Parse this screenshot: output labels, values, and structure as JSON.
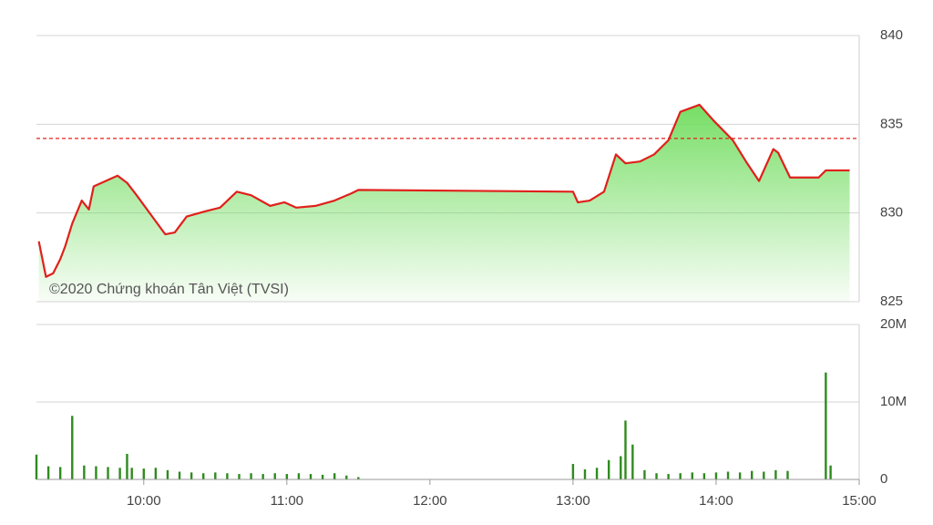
{
  "chart_data": [
    {
      "type": "line",
      "watermark": "©2020 Chứng khoán Tân Việt (TVSI)",
      "x": [
        "09:16",
        "09:19",
        "09:22",
        "09:25",
        "09:27",
        "09:30",
        "09:34",
        "09:37",
        "09:39",
        "09:44",
        "09:49",
        "09:53",
        "09:57",
        "10:03",
        "10:09",
        "10:13",
        "10:18",
        "10:26",
        "10:32",
        "10:39",
        "10:45",
        "10:53",
        "10:59",
        "11:04",
        "11:12",
        "11:20",
        "11:27",
        "11:30",
        "13:00",
        "13:02",
        "13:07",
        "13:13",
        "13:18",
        "13:22",
        "13:28",
        "13:34",
        "13:40",
        "13:45",
        "13:53",
        "13:59",
        "14:07",
        "14:13",
        "14:18",
        "14:24",
        "14:26",
        "14:31",
        "14:43",
        "14:46",
        "14:56"
      ],
      "values": [
        828.4,
        826.4,
        826.6,
        827.4,
        828.1,
        829.4,
        830.7,
        830.2,
        831.5,
        831.8,
        832.1,
        831.7,
        831.0,
        829.9,
        828.8,
        828.9,
        829.8,
        830.1,
        830.3,
        831.2,
        831.0,
        830.4,
        830.6,
        830.3,
        830.4,
        830.7,
        831.1,
        831.3,
        831.2,
        830.6,
        830.7,
        831.2,
        833.3,
        832.8,
        832.9,
        833.3,
        834.1,
        835.7,
        836.1,
        835.2,
        834.1,
        832.8,
        831.8,
        833.6,
        833.4,
        832.0,
        832.0,
        832.4,
        832.4
      ],
      "color": "#e0201b",
      "reference": 834.2,
      "reference_color": "#e0201b",
      "xlim": [
        "09:15",
        "15:00"
      ],
      "ylim": [
        825,
        840
      ],
      "yticks": [
        825,
        830,
        835,
        840
      ],
      "grid": true
    },
    {
      "type": "bar",
      "x": [
        "09:15",
        "09:20",
        "09:25",
        "09:30",
        "09:35",
        "09:40",
        "09:45",
        "09:50",
        "09:53",
        "09:55",
        "10:00",
        "10:05",
        "10:10",
        "10:15",
        "10:20",
        "10:25",
        "10:30",
        "10:35",
        "10:40",
        "10:45",
        "10:50",
        "10:55",
        "11:00",
        "11:05",
        "11:10",
        "11:15",
        "11:20",
        "11:25",
        "11:30",
        "13:00",
        "13:05",
        "13:10",
        "13:15",
        "13:20",
        "13:22",
        "13:25",
        "13:30",
        "13:35",
        "13:40",
        "13:45",
        "13:50",
        "13:55",
        "14:00",
        "14:05",
        "14:10",
        "14:15",
        "14:20",
        "14:25",
        "14:30",
        "14:46",
        "14:48"
      ],
      "values": [
        3200000,
        1700000,
        1600000,
        8200000,
        1800000,
        1700000,
        1600000,
        1500000,
        3300000,
        1500000,
        1400000,
        1500000,
        1200000,
        1000000,
        900000,
        800000,
        900000,
        800000,
        700000,
        800000,
        700000,
        800000,
        700000,
        800000,
        700000,
        600000,
        800000,
        500000,
        300000,
        2000000,
        1300000,
        1500000,
        2500000,
        3000000,
        7600000,
        4500000,
        1200000,
        800000,
        700000,
        800000,
        900000,
        800000,
        900000,
        1000000,
        900000,
        1100000,
        1000000,
        1200000,
        1100000,
        13800000,
        1800000
      ],
      "color": "#2e8b1e",
      "xlim": [
        "09:15",
        "15:00"
      ],
      "ylim": [
        0,
        20000000
      ],
      "yticks": [
        0,
        {
          "value": 10000000,
          "label": "10M"
        },
        {
          "value": 20000000,
          "label": "20M"
        }
      ],
      "xticks": [
        "10:00",
        "11:00",
        "12:00",
        "13:00",
        "14:00",
        "15:00"
      ],
      "grid": true
    }
  ]
}
